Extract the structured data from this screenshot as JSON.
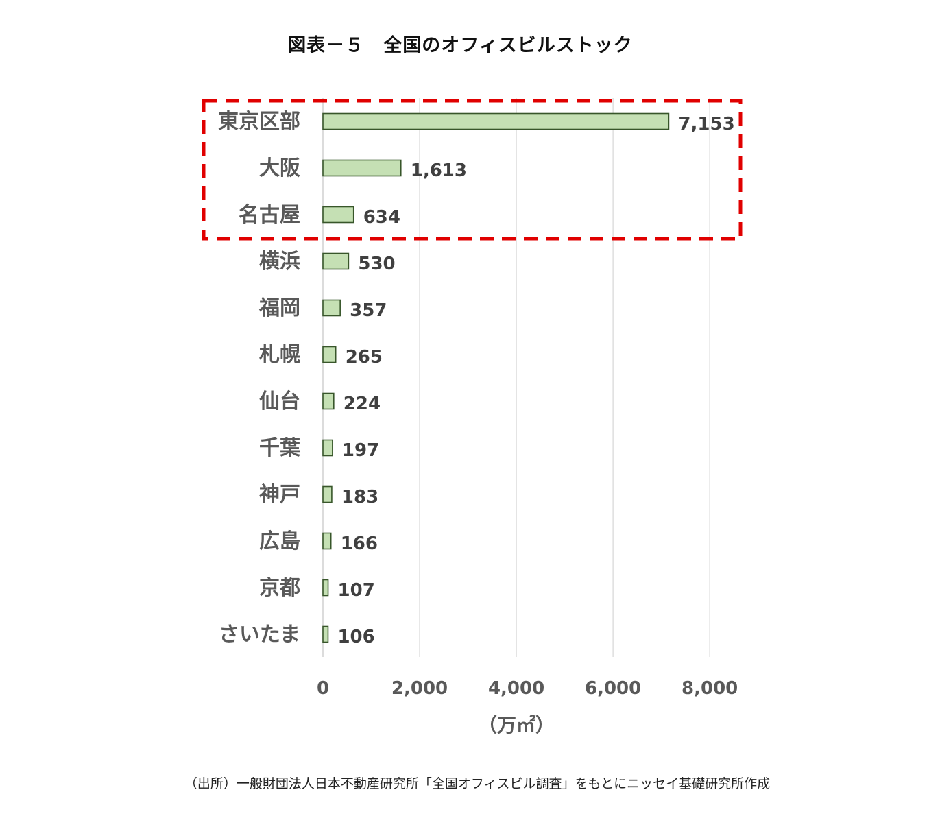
{
  "chart_data": {
    "type": "bar",
    "orientation": "horizontal",
    "title": "図表－５　全国のオフィスビルストック",
    "categories": [
      "東京区部",
      "大阪",
      "名古屋",
      "横浜",
      "福岡",
      "札幌",
      "仙台",
      "千葉",
      "神戸",
      "広島",
      "京都",
      "さいたま"
    ],
    "values": [
      7153,
      1613,
      634,
      530,
      357,
      265,
      224,
      197,
      183,
      166,
      107,
      106
    ],
    "value_labels": [
      "7,153",
      "1,613",
      "634",
      "530",
      "357",
      "265",
      "224",
      "197",
      "183",
      "166",
      "107",
      "106"
    ],
    "xlabel": "（万㎡）",
    "ylabel": "",
    "xlim": [
      0,
      8000
    ],
    "xticks": [
      0,
      2000,
      4000,
      6000,
      8000
    ],
    "xtick_labels": [
      "0",
      "2,000",
      "4,000",
      "6,000",
      "8,000"
    ],
    "grid": "vertical",
    "highlight": {
      "categories": [
        "東京区部",
        "大阪",
        "名古屋"
      ],
      "style": "red dashed box"
    },
    "colors": {
      "bar_fill": "#c5e0b4",
      "bar_stroke": "#38562a",
      "grid": "#d9d9d9",
      "highlight": "#e00000"
    }
  },
  "source": "（出所）一般財団法人日本不動産研究所「全国オフィスビル調査」をもとにニッセイ基礎研究所作成"
}
